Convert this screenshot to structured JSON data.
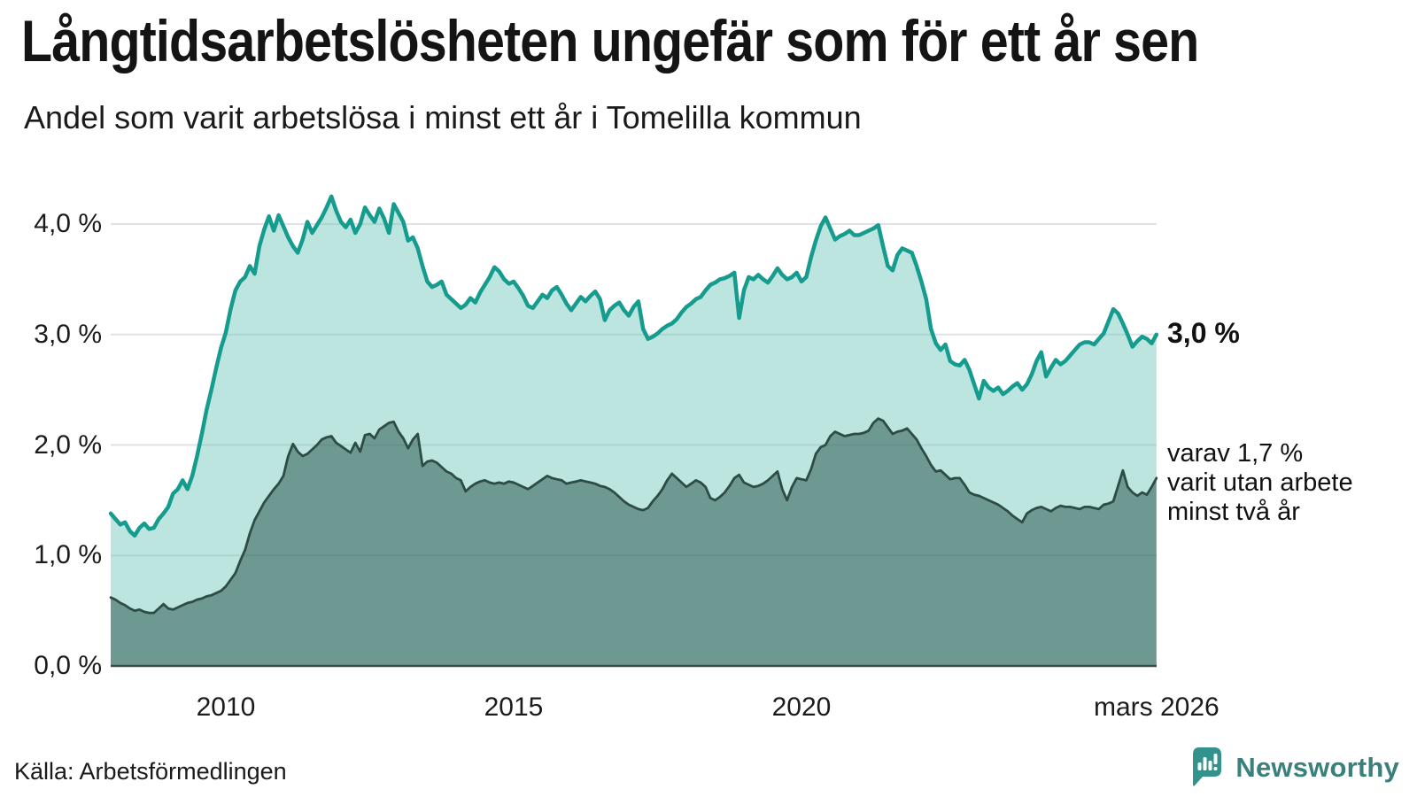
{
  "header": {
    "title": "Långtidsarbetslösheten ungefär som för ett år sen",
    "subtitle": "Andel som varit arbetslösa i minst ett år i Tomelilla kommun"
  },
  "labels": {
    "end_value": "3,0 %",
    "annotation_line1": "varav 1,7 %",
    "annotation_line2": "varit utan arbete",
    "annotation_line3": "minst två år"
  },
  "footer": {
    "source": "Källa: Arbetsförmedlingen",
    "brand": "Newsworthy"
  },
  "colors": {
    "teal_line": "#169c8e",
    "teal_fill": "rgba(109,197,185,0.45)",
    "dark_line": "#2d4b47",
    "dark_fill": "rgba(39,82,75,0.52)",
    "gridline": "#e0e2e6",
    "baseline": "#3c4a4c",
    "brand_teal": "#33928b"
  },
  "chart_data": {
    "type": "area",
    "title": "Långtidsarbetslösheten ungefär som för ett år sen",
    "subtitle": "Andel som varit arbetslösa i minst ett år i Tomelilla kommun",
    "xlabel": "",
    "ylabel": "",
    "xlim": [
      2008.0,
      2026.1667
    ],
    "ylim": [
      0,
      4.35
    ],
    "grid": true,
    "legend_position": "none",
    "x_start": 2008.0,
    "x_step_years": 0.0833333,
    "y_ticks": [
      {
        "label": "0,0 %",
        "value": 0
      },
      {
        "label": "1,0 %",
        "value": 1
      },
      {
        "label": "2,0 %",
        "value": 2
      },
      {
        "label": "3,0 %",
        "value": 3
      },
      {
        "label": "4,0 %",
        "value": 4
      }
    ],
    "x_ticks": [
      {
        "label": "2010",
        "year": 2010
      },
      {
        "label": "2015",
        "year": 2015
      },
      {
        "label": "2020",
        "year": 2020
      },
      {
        "label": "mars 2026",
        "year": 2026.1667
      }
    ],
    "series": [
      {
        "name": "Andel arbetslösa minst ett år",
        "end_label": "3,0 %",
        "last_value": 3.0,
        "values": [
          1.38,
          1.33,
          1.28,
          1.3,
          1.22,
          1.18,
          1.25,
          1.29,
          1.24,
          1.25,
          1.33,
          1.38,
          1.44,
          1.56,
          1.6,
          1.68,
          1.6,
          1.72,
          1.9,
          2.1,
          2.32,
          2.5,
          2.7,
          2.88,
          3.02,
          3.23,
          3.4,
          3.48,
          3.52,
          3.62,
          3.55,
          3.8,
          3.95,
          4.07,
          3.94,
          4.08,
          3.98,
          3.88,
          3.8,
          3.74,
          3.86,
          4.02,
          3.92,
          3.99,
          4.06,
          4.15,
          4.25,
          4.12,
          4.02,
          3.97,
          4.04,
          3.92,
          4.0,
          4.15,
          4.08,
          4.02,
          4.14,
          4.05,
          3.92,
          4.18,
          4.1,
          4.02,
          3.85,
          3.88,
          3.78,
          3.62,
          3.48,
          3.43,
          3.45,
          3.48,
          3.36,
          3.32,
          3.28,
          3.24,
          3.27,
          3.33,
          3.29,
          3.38,
          3.45,
          3.52,
          3.61,
          3.57,
          3.5,
          3.46,
          3.48,
          3.42,
          3.35,
          3.26,
          3.24,
          3.3,
          3.36,
          3.33,
          3.4,
          3.43,
          3.36,
          3.28,
          3.22,
          3.28,
          3.34,
          3.3,
          3.35,
          3.39,
          3.32,
          3.13,
          3.22,
          3.26,
          3.29,
          3.22,
          3.17,
          3.25,
          3.3,
          3.05,
          2.96,
          2.98,
          3.01,
          3.05,
          3.08,
          3.1,
          3.14,
          3.2,
          3.25,
          3.28,
          3.32,
          3.34,
          3.4,
          3.45,
          3.47,
          3.5,
          3.51,
          3.53,
          3.56,
          3.15,
          3.4,
          3.52,
          3.5,
          3.54,
          3.5,
          3.47,
          3.53,
          3.6,
          3.54,
          3.5,
          3.52,
          3.56,
          3.48,
          3.52,
          3.7,
          3.85,
          3.98,
          4.06,
          3.96,
          3.86,
          3.89,
          3.91,
          3.94,
          3.9,
          3.9,
          3.92,
          3.94,
          3.96,
          3.99,
          3.8,
          3.62,
          3.58,
          3.72,
          3.78,
          3.76,
          3.74,
          3.62,
          3.48,
          3.32,
          3.05,
          2.92,
          2.86,
          2.91,
          2.76,
          2.73,
          2.72,
          2.77,
          2.68,
          2.55,
          2.42,
          2.58,
          2.52,
          2.49,
          2.52,
          2.46,
          2.49,
          2.53,
          2.56,
          2.5,
          2.55,
          2.64,
          2.76,
          2.84,
          2.62,
          2.7,
          2.77,
          2.73,
          2.76,
          2.81,
          2.86,
          2.91,
          2.93,
          2.93,
          2.91,
          2.96,
          3.01,
          3.12,
          3.23,
          3.19,
          3.1,
          3.0,
          2.89,
          2.94,
          2.98,
          2.96,
          2.92,
          3.0
        ]
      },
      {
        "name": "Andel arbetslösa minst två år",
        "end_label": "varav 1,7 % varit utan arbete minst två år",
        "last_value": 1.7,
        "values": [
          0.62,
          0.6,
          0.57,
          0.55,
          0.52,
          0.5,
          0.51,
          0.49,
          0.48,
          0.48,
          0.52,
          0.56,
          0.52,
          0.51,
          0.53,
          0.55,
          0.57,
          0.58,
          0.6,
          0.61,
          0.63,
          0.64,
          0.66,
          0.68,
          0.72,
          0.78,
          0.84,
          0.95,
          1.05,
          1.2,
          1.32,
          1.4,
          1.48,
          1.54,
          1.6,
          1.65,
          1.72,
          1.9,
          2.01,
          1.94,
          1.9,
          1.92,
          1.96,
          2.0,
          2.05,
          2.07,
          2.08,
          2.02,
          1.99,
          1.96,
          1.93,
          2.02,
          1.94,
          2.09,
          2.1,
          2.06,
          2.14,
          2.17,
          2.2,
          2.21,
          2.12,
          2.06,
          1.97,
          2.05,
          2.1,
          1.81,
          1.85,
          1.86,
          1.84,
          1.8,
          1.76,
          1.74,
          1.7,
          1.68,
          1.58,
          1.62,
          1.65,
          1.67,
          1.68,
          1.66,
          1.65,
          1.66,
          1.65,
          1.67,
          1.66,
          1.64,
          1.62,
          1.6,
          1.63,
          1.66,
          1.69,
          1.72,
          1.7,
          1.69,
          1.68,
          1.65,
          1.66,
          1.67,
          1.68,
          1.67,
          1.66,
          1.65,
          1.63,
          1.62,
          1.6,
          1.57,
          1.53,
          1.49,
          1.46,
          1.44,
          1.42,
          1.41,
          1.43,
          1.49,
          1.54,
          1.6,
          1.68,
          1.74,
          1.7,
          1.66,
          1.62,
          1.65,
          1.68,
          1.66,
          1.62,
          1.52,
          1.5,
          1.53,
          1.57,
          1.63,
          1.7,
          1.73,
          1.66,
          1.64,
          1.62,
          1.63,
          1.65,
          1.68,
          1.72,
          1.76,
          1.6,
          1.5,
          1.62,
          1.7,
          1.69,
          1.68,
          1.78,
          1.92,
          1.98,
          2.0,
          2.08,
          2.12,
          2.1,
          2.08,
          2.09,
          2.1,
          2.1,
          2.11,
          2.13,
          2.2,
          2.24,
          2.22,
          2.16,
          2.1,
          2.12,
          2.13,
          2.15,
          2.1,
          2.05,
          1.97,
          1.9,
          1.82,
          1.76,
          1.77,
          1.73,
          1.69,
          1.7,
          1.7,
          1.64,
          1.57,
          1.55,
          1.54,
          1.52,
          1.5,
          1.48,
          1.46,
          1.43,
          1.4,
          1.36,
          1.33,
          1.3,
          1.38,
          1.41,
          1.43,
          1.44,
          1.42,
          1.4,
          1.43,
          1.45,
          1.44,
          1.44,
          1.43,
          1.42,
          1.44,
          1.44,
          1.43,
          1.42,
          1.46,
          1.47,
          1.49,
          1.63,
          1.77,
          1.62,
          1.57,
          1.54,
          1.57,
          1.55,
          1.62,
          1.7
        ]
      }
    ]
  }
}
